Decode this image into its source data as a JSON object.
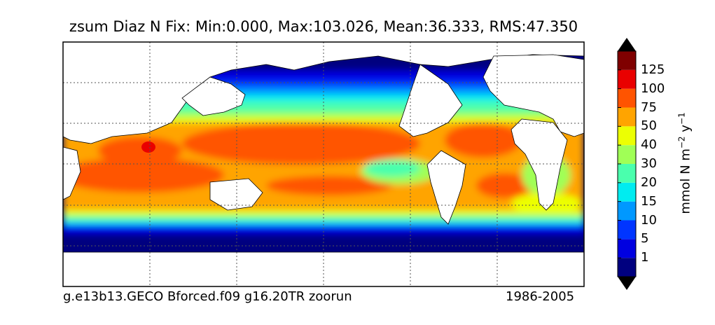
{
  "title": "zsum Diaz N Fix: Min:0.000, Max:103.026, Mean:36.333, RMS:47.350",
  "footer": {
    "left": "g.e13b13.GECO Bforced.f09 g16.20TR zoorun",
    "right": "1986-2005"
  },
  "colorbar": {
    "label_text": "mmol N m",
    "label_exp1": "−2",
    "label_mid": " y",
    "label_exp2": "−1",
    "levels": [
      "1",
      "5",
      "10",
      "15",
      "20",
      "30",
      "40",
      "50",
      "75",
      "100",
      "125"
    ],
    "colors": [
      "#00007f",
      "#0000e0",
      "#0035ff",
      "#0098ff",
      "#00ecf0",
      "#4affad",
      "#a0ff56",
      "#ecff03",
      "#ffa400",
      "#ff5400",
      "#e90000",
      "#7f0000"
    ],
    "extend": "both"
  },
  "map": {
    "projection": "cylindrical",
    "longitude_range": [
      30,
      390
    ],
    "latitude_range": [
      -90,
      90
    ],
    "grid": "dotted",
    "land_color": "#ffffff",
    "data_range": {
      "min": 0.0,
      "max": 103.026,
      "mean": 36.333,
      "rms": 47.35
    }
  }
}
